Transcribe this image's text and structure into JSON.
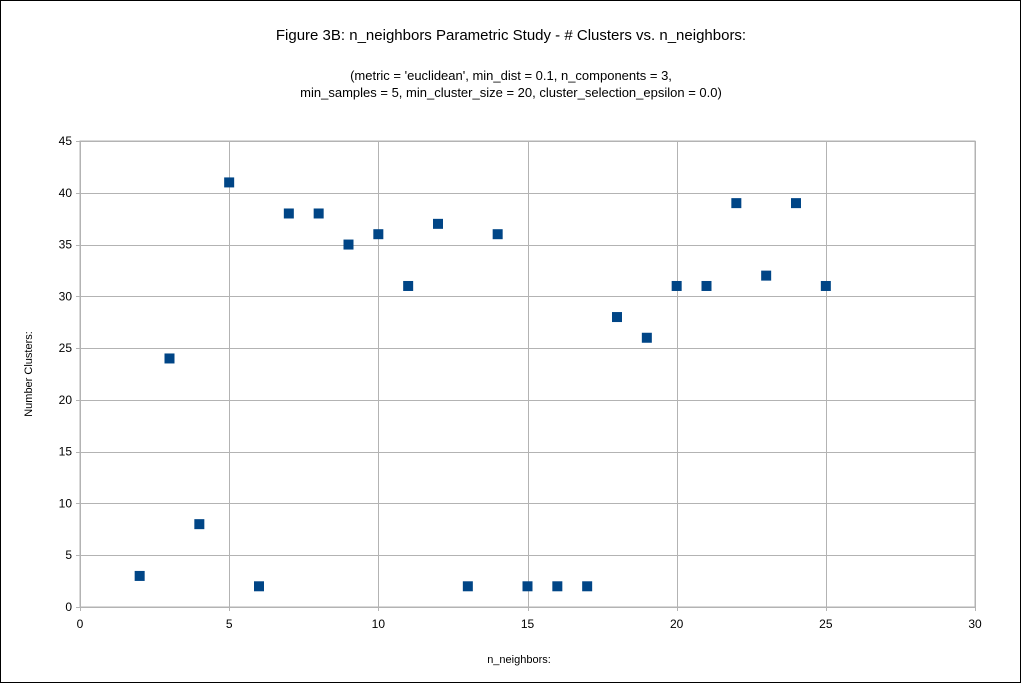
{
  "chart_data": {
    "type": "scatter",
    "title": "Figure 3B: n_neighbors Parametric Study - # Clusters vs. n_neighbors:",
    "subtitle_lines": [
      "(metric = 'euclidean', min_dist = 0.1, n_components = 3,",
      "min_samples = 5, min_cluster_size = 20, cluster_selection_epsilon = 0.0)"
    ],
    "xlabel": "n_neighbors:",
    "ylabel": "Number Clusters:",
    "xlim": [
      0,
      30
    ],
    "ylim": [
      0,
      45
    ],
    "x_ticks": [
      0,
      5,
      10,
      15,
      20,
      25,
      30
    ],
    "y_ticks": [
      0,
      5,
      10,
      15,
      20,
      25,
      30,
      35,
      40,
      45
    ],
    "grid": true,
    "legend": "none",
    "marker": "square",
    "series": [
      {
        "color": "#004586",
        "x": [
          2,
          3,
          4,
          5,
          6,
          7,
          8,
          9,
          10,
          11,
          12,
          13,
          14,
          15,
          16,
          17,
          18,
          19,
          20,
          21,
          22,
          23,
          24,
          25
        ],
        "y": [
          3,
          24,
          8,
          41,
          2,
          38,
          38,
          35,
          36,
          31,
          37,
          2,
          36,
          2,
          2,
          2,
          28,
          26,
          31,
          31,
          39,
          32,
          39,
          31
        ]
      }
    ]
  }
}
